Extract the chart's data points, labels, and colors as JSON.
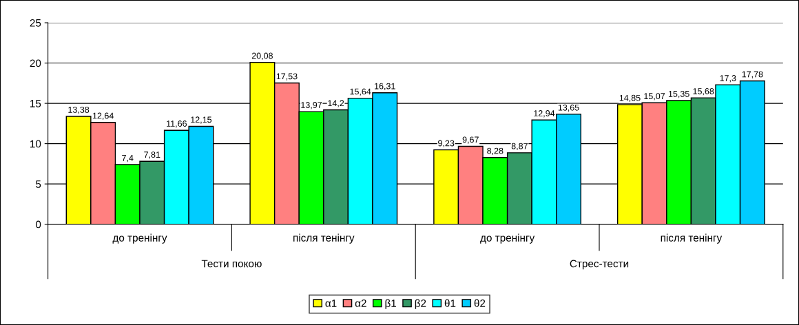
{
  "chart_data": {
    "type": "bar",
    "categories": [
      "до тренінгу",
      "після тенінгу",
      "до тренінгу",
      "після тенінгу"
    ],
    "annotations": [
      "Тести покою",
      "Стрес-тести"
    ],
    "series": [
      {
        "name": "α1",
        "color": "#ffff00",
        "values": [
          13.38,
          20.08,
          9.23,
          14.85
        ],
        "value_labels": [
          "13,38",
          "20,08",
          "9,23",
          "14,85"
        ]
      },
      {
        "name": "α2",
        "color": "#ff8080",
        "values": [
          12.64,
          17.53,
          9.67,
          15.07
        ],
        "value_labels": [
          "12,64",
          "17,53",
          "9,67",
          "15,07"
        ]
      },
      {
        "name": "β1",
        "color": "#00ff00",
        "values": [
          7.4,
          13.97,
          8.28,
          15.35
        ],
        "value_labels": [
          "7,4",
          "13,97",
          "8,28",
          "15,35"
        ]
      },
      {
        "name": "β2",
        "color": "#339966",
        "values": [
          7.81,
          14.2,
          8.87,
          15.68
        ],
        "value_labels": [
          "7,81",
          "14,2",
          "8,87",
          "15,68"
        ]
      },
      {
        "name": "θ1",
        "color": "#00ffff",
        "values": [
          11.66,
          15.64,
          12.94,
          17.3
        ],
        "value_labels": [
          "11,66",
          "15,64",
          "12,94",
          "17,3"
        ]
      },
      {
        "name": "θ2",
        "color": "#00ccff",
        "values": [
          12.15,
          16.31,
          13.65,
          17.78
        ],
        "value_labels": [
          "12,15",
          "16,31",
          "13,65",
          "17,78"
        ]
      }
    ],
    "ylim": [
      0,
      25
    ],
    "yticks": [
      0,
      5,
      10,
      15,
      20,
      25
    ],
    "grid": "y",
    "legend": "bottom"
  }
}
